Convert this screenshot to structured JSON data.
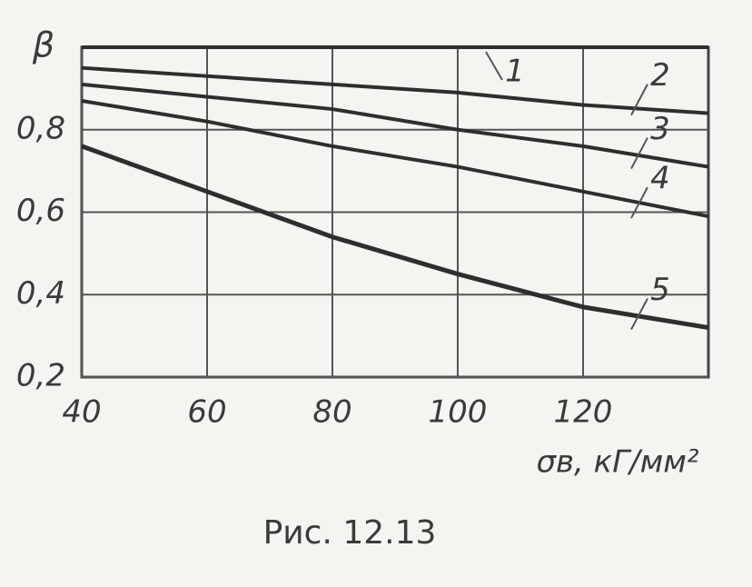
{
  "chart_data": {
    "type": "line",
    "y_label": "β",
    "x_label": "σв, кГ/мм²",
    "caption": "Рис. 12.13",
    "x": [
      40,
      60,
      80,
      100,
      120,
      140
    ],
    "series": [
      {
        "name": "1",
        "color": "#2e2e2e",
        "values": [
          1.0,
          1.0,
          1.0,
          1.0,
          1.0,
          1.0
        ]
      },
      {
        "name": "2",
        "color": "#2e2e2e",
        "values": [
          0.95,
          0.93,
          0.91,
          0.89,
          0.86,
          0.84
        ]
      },
      {
        "name": "3",
        "color": "#2e2e2e",
        "values": [
          0.91,
          0.88,
          0.85,
          0.8,
          0.76,
          0.71
        ]
      },
      {
        "name": "4",
        "color": "#2e2e2e",
        "values": [
          0.87,
          0.82,
          0.76,
          0.71,
          0.65,
          0.59
        ]
      },
      {
        "name": "5",
        "color": "#2e2e2e",
        "values": [
          0.76,
          0.65,
          0.54,
          0.45,
          0.37,
          0.32
        ]
      }
    ],
    "xlim": [
      40,
      140
    ],
    "ylim": [
      0.2,
      1.0
    ],
    "xticks": [
      40,
      60,
      80,
      100,
      120
    ],
    "yticks": [
      {
        "value": 0.8,
        "label": "0,8"
      },
      {
        "value": 0.6,
        "label": "0,6"
      },
      {
        "value": 0.4,
        "label": "0,4"
      },
      {
        "value": 0.2,
        "label": "0,2"
      }
    ],
    "grid": true
  }
}
